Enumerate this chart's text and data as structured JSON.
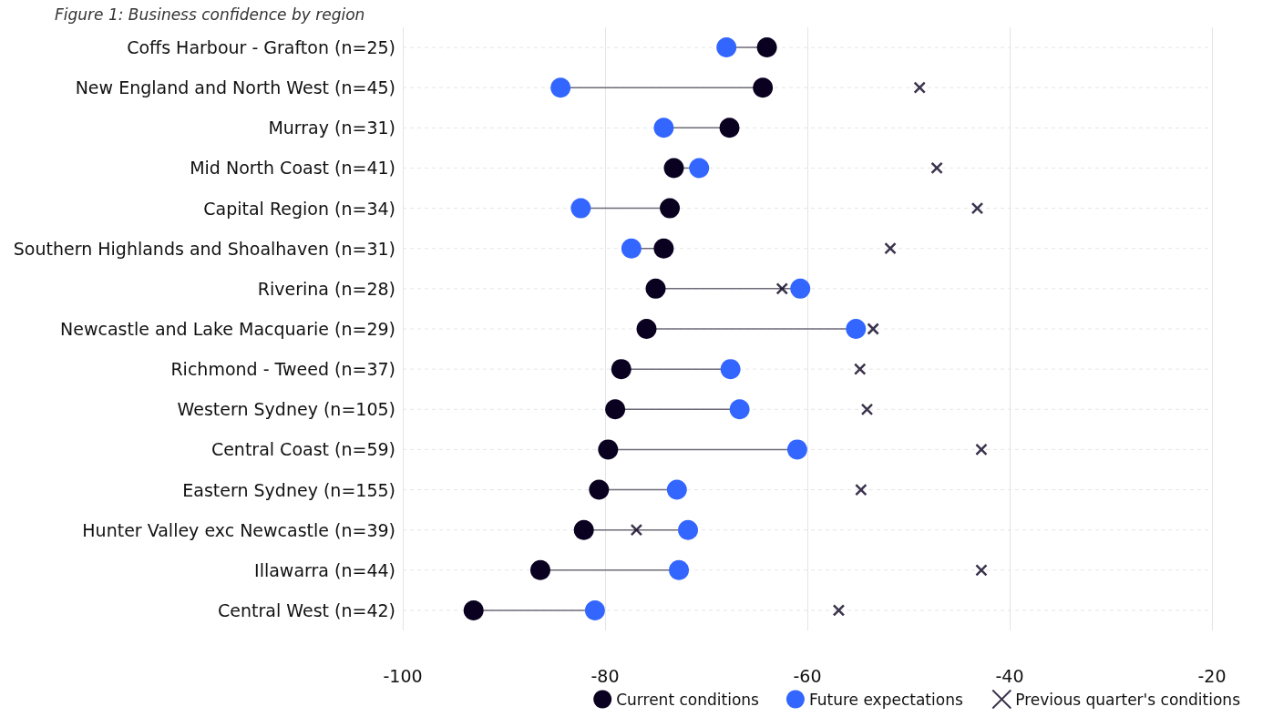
{
  "chart_data": {
    "type": "scatter",
    "title": "Figure 1: Business confidence by region",
    "orientation": "horizontal",
    "categories": [
      "Coffs Harbour - Grafton (n=25)",
      "New England and North West (n=45)",
      "Murray (n=31)",
      "Mid North Coast (n=41)",
      "Capital Region (n=34)",
      "Southern Highlands and Shoalhaven (n=31)",
      "Riverina (n=28)",
      "Newcastle and Lake Macquarie (n=29)",
      "Richmond - Tweed (n=37)",
      "Western Sydney (n=105)",
      "Central Coast (n=59)",
      "Eastern Sydney (n=155)",
      "Hunter Valley exc Newcastle (n=39)",
      "Illawarra (n=44)",
      "Central West (n=42)"
    ],
    "series": [
      {
        "name": "Current conditions",
        "color": "#0a0020",
        "marker": "circle",
        "values": [
          -64.0,
          -64.4,
          -67.7,
          -73.2,
          -73.6,
          -74.2,
          -75.0,
          -75.9,
          -78.4,
          -79.0,
          -79.7,
          -80.6,
          -82.1,
          -86.4,
          -93.0
        ]
      },
      {
        "name": "Future expectations",
        "color": "#3366ff",
        "marker": "circle",
        "values": [
          -68.0,
          -84.4,
          -74.2,
          -70.7,
          -82.4,
          -77.4,
          -60.7,
          -55.2,
          -67.6,
          -66.7,
          -61.0,
          -72.9,
          -71.8,
          -72.7,
          -81.0
        ]
      },
      {
        "name": "Previous quarter's conditions",
        "color": "#0a0020",
        "marker": "cross",
        "values": [
          null,
          -48.9,
          null,
          -47.2,
          -43.2,
          -51.8,
          -62.5,
          -53.5,
          -54.8,
          -54.1,
          -42.8,
          -54.7,
          -76.9,
          -42.8,
          -56.9
        ]
      }
    ],
    "xlim": [
      -100,
      -20
    ],
    "xticks": [
      -100,
      -80,
      -60,
      -40,
      -20
    ],
    "grid": true,
    "legend": "bottom right"
  }
}
